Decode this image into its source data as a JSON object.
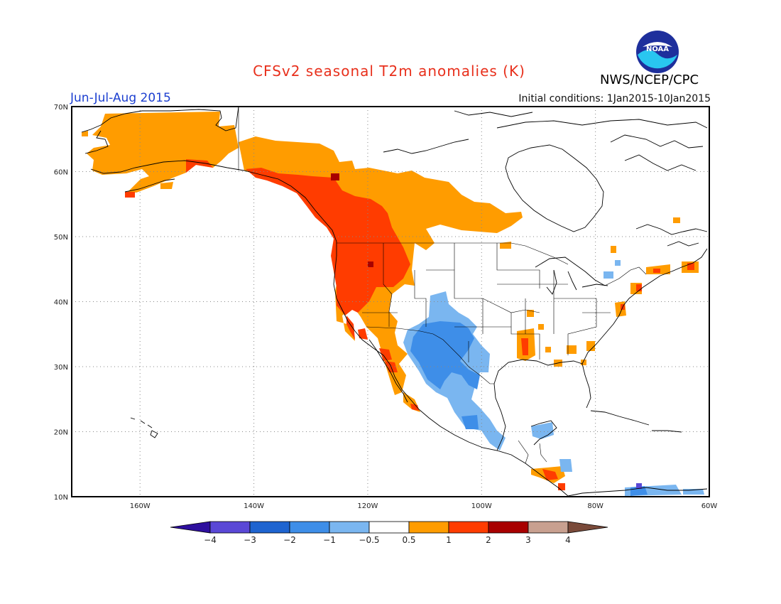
{
  "title": "CFSv2 seasonal T2m anomalies (K)",
  "period": "Jun-Jul-Aug 2015",
  "initial_conditions": "Initial conditions: 1Jan2015-10Jan2015",
  "agency": "NWS/NCEP/CPC",
  "logo_text": "NOAA",
  "map": {
    "lon_range": [
      -172,
      -60
    ],
    "lat_range": [
      10,
      70
    ],
    "lat_labels": [
      "70N",
      "60N",
      "50N",
      "40N",
      "30N",
      "20N",
      "10N"
    ],
    "lat_values": [
      70,
      60,
      50,
      40,
      30,
      20,
      10
    ],
    "lon_labels": [
      "160W",
      "140W",
      "120W",
      "100W",
      "80W",
      "60W"
    ],
    "lon_values": [
      -160,
      -140,
      -120,
      -100,
      -80,
      -60
    ],
    "grid": "dotted"
  },
  "colorbar": {
    "labels": [
      "-4",
      "-3",
      "-2",
      "-1",
      "-0.5",
      "0.5",
      "1",
      "2",
      "3",
      "4"
    ],
    "colors": [
      "#2e0f9e",
      "#5a48d6",
      "#1e64d0",
      "#3e8ee8",
      "#7ab6f0",
      "#ffffff",
      "#ff9c00",
      "#ff3c00",
      "#a80000",
      "#c8a090",
      "#7a4a3a"
    ]
  },
  "colors": {
    "c1": "#ff9c00",
    "c2": "#ff3c00",
    "c3": "#a80000",
    "n1": "#7ab6f0",
    "n2": "#3e8ee8",
    "n3": "#1e64d0",
    "n4": "#5a48d6"
  }
}
